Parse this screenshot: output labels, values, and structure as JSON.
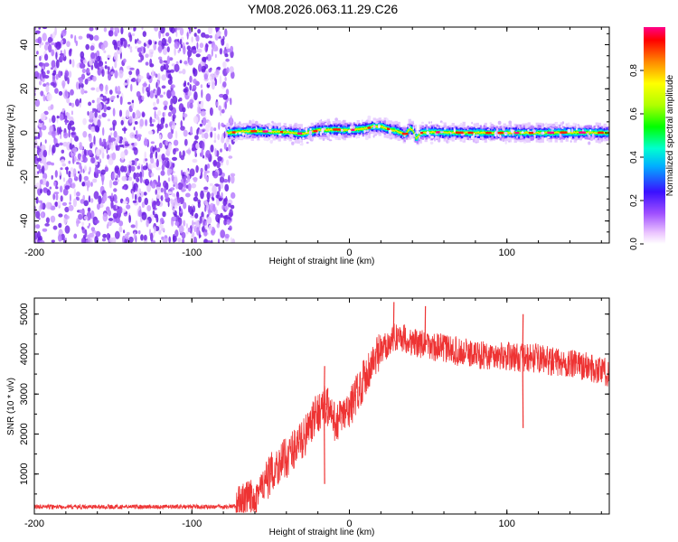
{
  "figure_title": "YM08.2026.063.11.29.C26",
  "chart_data": [
    {
      "type": "heatmap",
      "title": "YM08.2026.063.11.29.C26",
      "xlabel": "Height of straight line (km)",
      "ylabel": "Frequency (Hz)",
      "xlim": [
        -200,
        165
      ],
      "ylim": [
        -50,
        48
      ],
      "xticks": [
        -200,
        -100,
        0,
        100
      ],
      "yticks": [
        -40,
        -20,
        0,
        20,
        40
      ],
      "noise_region_x": [
        -200,
        -76
      ],
      "signal_start_x": -78,
      "signal_centerline": {
        "x": [
          -78,
          -70,
          -60,
          -50,
          -40,
          -30,
          -25,
          -20,
          -10,
          0,
          10,
          15,
          20,
          25,
          30,
          35,
          38,
          40,
          42,
          45,
          50,
          60,
          80,
          100,
          120,
          140,
          165
        ],
        "y": [
          0,
          0.5,
          0.8,
          0.5,
          0.3,
          -0.5,
          0.5,
          1.2,
          1.5,
          1.2,
          2.0,
          3.0,
          2.8,
          1.5,
          0.8,
          -1.0,
          2.0,
          1.0,
          -2.5,
          0.0,
          0.3,
          0.2,
          0.0,
          0.0,
          0.0,
          0.2,
          0.0
        ]
      },
      "colorbar": {
        "label": "Normalized spectral amplitude",
        "range": [
          0.0,
          1.0
        ],
        "ticks": [
          "0.0",
          "0.2",
          "0.4",
          "0.6",
          "0.8"
        ]
      }
    },
    {
      "type": "line",
      "xlabel": "Height of straight line (km)",
      "ylabel": "SNR (10 * v/v)",
      "xlim": [
        -200,
        165
      ],
      "ylim": [
        0,
        5400
      ],
      "xticks": [
        -200,
        -100,
        0,
        100
      ],
      "yticks": [
        1000,
        2000,
        3000,
        4000,
        5000
      ],
      "series": [
        {
          "name": "SNR",
          "color": "#ee3333",
          "x": [
            -200,
            -150,
            -100,
            -80,
            -70,
            -65,
            -60,
            -55,
            -50,
            -45,
            -40,
            -35,
            -30,
            -25,
            -20,
            -15,
            -10,
            -5,
            0,
            5,
            10,
            15,
            20,
            25,
            30,
            35,
            40,
            45,
            50,
            60,
            70,
            80,
            90,
            100,
            110,
            120,
            130,
            140,
            150,
            160,
            165
          ],
          "values": [
            180,
            180,
            180,
            180,
            200,
            320,
            500,
            650,
            1000,
            1250,
            1400,
            1650,
            1850,
            2150,
            2550,
            2750,
            2300,
            2400,
            2600,
            3050,
            3450,
            3800,
            4050,
            4300,
            4450,
            4400,
            4300,
            4250,
            4200,
            4150,
            4050,
            4000,
            3950,
            3950,
            3900,
            3900,
            3800,
            3750,
            3700,
            3600,
            3500
          ],
          "spikes": [
            {
              "x": -16,
              "value": 3700
            },
            {
              "x": -14,
              "value": 3150
            },
            {
              "x": -16,
              "value": 750
            },
            {
              "x": 28,
              "value": 5300
            },
            {
              "x": 48,
              "value": 5200
            },
            {
              "x": 110,
              "value": 5000
            },
            {
              "x": 110,
              "value": 2150
            }
          ]
        }
      ]
    }
  ]
}
